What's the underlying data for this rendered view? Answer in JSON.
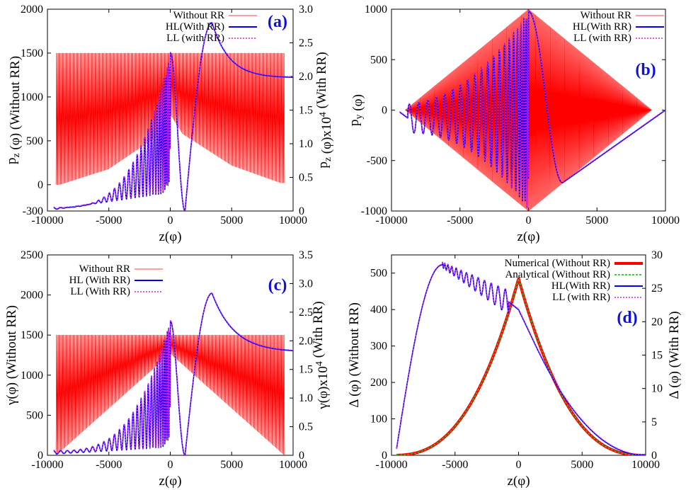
{
  "colors": {
    "without_rr": "#ff0000",
    "hl": "#0000ff",
    "ll": "#e020e0",
    "analytical": "#22cc22",
    "numerical": "#ff0000",
    "panel_label": "#1010dd"
  },
  "chart_data": [
    {
      "id": "a",
      "type": "line",
      "panel_label": "(a)",
      "xlabel": "z(φ)",
      "ylabel": "p_z (φ) (Without RR)",
      "y2label": "p_z (φ)x10^4 (With RR)",
      "xlim": [
        -10000,
        10000
      ],
      "ylim": [
        -300,
        2000
      ],
      "y2lim": [
        0,
        3.0
      ],
      "xticks": [
        "-10000",
        "-5000",
        "0",
        "5000",
        "10000"
      ],
      "yticks": [
        "-300",
        "0",
        "500",
        "1000",
        "1500",
        "2000"
      ],
      "y2ticks": [
        "0",
        "0.5",
        "1.0",
        "1.5",
        "2.0",
        "2.5",
        "3.0"
      ],
      "legend": [
        "Without RR",
        "HL(With RR)",
        "LL (with RR)"
      ],
      "series": [
        {
          "name": "Without RR",
          "description": "rapid oscillation between envelope ~1500 (top) and lower envelope rising toward ~800 at z=0",
          "envelope_low": [
            [
              -9000,
              0
            ],
            [
              -5000,
              180
            ],
            [
              -1000,
              560
            ],
            [
              0,
              800
            ],
            [
              1000,
              580
            ],
            [
              5000,
              220
            ],
            [
              9000,
              20
            ]
          ],
          "envelope_high": 1500
        },
        {
          "name": "HL(With RR)",
          "points_y2": [
            [
              -9500,
              0.0
            ],
            [
              -8000,
              0.1
            ],
            [
              -5000,
              0.3
            ],
            [
              -2000,
              0.6
            ],
            [
              0,
              2.35
            ],
            [
              1200,
              0.1
            ],
            [
              3400,
              2.8
            ],
            [
              6000,
              2.1
            ],
            [
              10000,
              1.98
            ]
          ]
        },
        {
          "name": "LL (with RR)",
          "points_y2": [
            [
              -9500,
              0.0
            ],
            [
              -8000,
              0.1
            ],
            [
              -5000,
              0.3
            ],
            [
              -2000,
              0.6
            ],
            [
              0,
              2.35
            ],
            [
              1200,
              0.1
            ],
            [
              3400,
              2.8
            ],
            [
              6000,
              2.12
            ],
            [
              10000,
              2.0
            ]
          ]
        }
      ]
    },
    {
      "id": "b",
      "type": "line",
      "panel_label": "(b)",
      "xlabel": "z(φ)",
      "ylabel": "p_y (φ)",
      "xlim": [
        -10000,
        10000
      ],
      "ylim": [
        -1000,
        1000
      ],
      "xticks": [
        "-10000",
        "-5000",
        "0",
        "5000",
        "10000"
      ],
      "yticks": [
        "-1000",
        "-500",
        "0",
        "500",
        "1000"
      ],
      "legend": [
        "Without RR",
        "HL(With RR)",
        "LL (with RR)"
      ],
      "series": [
        {
          "name": "Without RR",
          "description": "diamond-shaped envelope from (-9000,0) to (0,1000) to (9000,0) to (0,-1000)"
        },
        {
          "name": "HL(With RR)",
          "description": "oscillation growing in amplitude toward z=0, peak ~980 near z=0, then min ~-720 at z~2500 rising to ~0 at z=10000"
        },
        {
          "name": "LL (with RR)",
          "description": "overlaps HL(With RR)"
        }
      ]
    },
    {
      "id": "c",
      "type": "line",
      "panel_label": "(c)",
      "xlabel": "z(φ)",
      "ylabel": "γ(φ) (Without RR)",
      "y2label": "γ(φ)x10^4 (With RR)",
      "xlim": [
        -10000,
        10000
      ],
      "ylim": [
        0,
        2500
      ],
      "y2lim": [
        0,
        3.5
      ],
      "xticks": [
        "-10000",
        "-5000",
        "0",
        "5000",
        "10000"
      ],
      "yticks": [
        "0",
        "500",
        "1000",
        "1500",
        "2000",
        "2500"
      ],
      "y2ticks": [
        "0",
        "0.5",
        "1.0",
        "1.5",
        "2.0",
        "2.5",
        "3.0",
        "3.5"
      ],
      "legend": [
        "Without RR",
        "HL (With RR)",
        "LL (With RR)"
      ],
      "series": [
        {
          "name": "Without RR",
          "description": "rapid oscillation with upper envelope ~1500 and lower envelope rising to ~1270 at z=0"
        },
        {
          "name": "HL (With RR)",
          "points_y2": [
            [
              -9500,
              0.0
            ],
            [
              -5000,
              0.2
            ],
            [
              -1000,
              1.5
            ],
            [
              0,
              2.35
            ],
            [
              1200,
              0.0
            ],
            [
              3400,
              2.83
            ],
            [
              7000,
              1.9
            ],
            [
              10000,
              1.8
            ]
          ]
        },
        {
          "name": "LL (With RR)",
          "points_y2": [
            [
              -9500,
              0.0
            ],
            [
              -5000,
              0.2
            ],
            [
              -1000,
              1.5
            ],
            [
              0,
              2.35
            ],
            [
              1200,
              0.0
            ],
            [
              3400,
              2.83
            ],
            [
              7000,
              1.92
            ],
            [
              10000,
              1.82
            ]
          ]
        }
      ]
    },
    {
      "id": "d",
      "type": "line",
      "panel_label": "(d)",
      "xlabel": "z(φ)",
      "ylabel": "Δ (φ) (Without RR)",
      "y2label": "Δ (φ) (With RR)",
      "xlim": [
        -10000,
        10000
      ],
      "ylim": [
        0,
        550
      ],
      "y2lim": [
        0,
        30
      ],
      "xticks": [
        "-10000",
        "-5000",
        "0",
        "5000",
        "10000"
      ],
      "yticks": [
        "0",
        "100",
        "200",
        "300",
        "400",
        "500"
      ],
      "y2ticks": [
        "0",
        "5",
        "10",
        "15",
        "20",
        "25",
        "30"
      ],
      "legend": [
        "Numerical (Without RR)",
        "Analytical (Without RR)",
        "HL(With RR)",
        "LL (with RR)"
      ],
      "series": [
        {
          "name": "Numerical (Without RR)",
          "description": "cusp peaking ~485 at z=0, symmetric decay to ~0 at z=±10000"
        },
        {
          "name": "Analytical (Without RR)",
          "description": "overlaps Numerical"
        },
        {
          "name": "HL(With RR)",
          "points_y2": [
            [
              -9600,
              1.0
            ],
            [
              -7500,
              20
            ],
            [
              -6000,
              28.5
            ],
            [
              -3000,
              24.5
            ],
            [
              -700,
              23
            ],
            [
              0,
              21.8
            ],
            [
              1200,
              17
            ],
            [
              3000,
              11
            ],
            [
              6000,
              4
            ],
            [
              10000,
              0.3
            ]
          ]
        },
        {
          "name": "LL (with RR)",
          "description": "overlaps HL(With RR)"
        }
      ]
    }
  ]
}
